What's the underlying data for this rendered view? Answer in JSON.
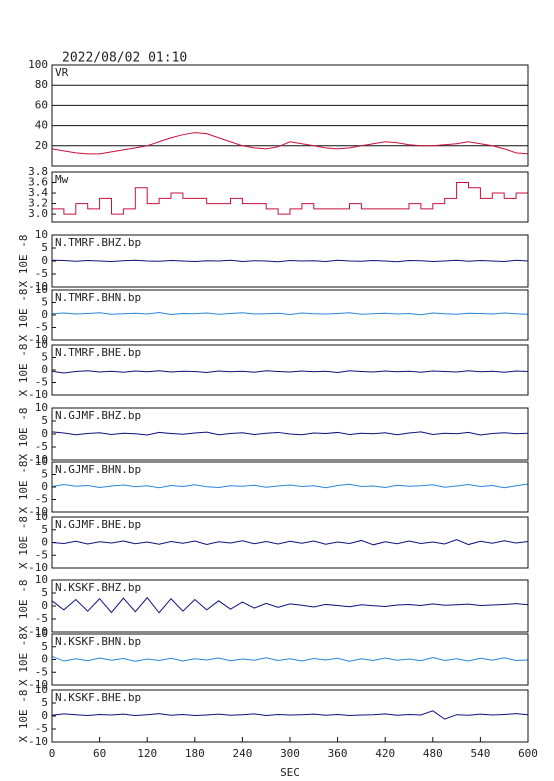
{
  "title": "2022/08/02 01:10",
  "chart_data": [
    {
      "type": "line",
      "series": [
        {
          "name": "VR",
          "color": "#c8103c",
          "values": [
            17,
            15,
            13,
            12,
            12,
            14,
            16,
            18,
            20,
            24,
            28,
            31,
            33,
            32,
            28,
            24,
            20,
            18,
            17,
            19,
            24,
            22,
            20,
            18,
            17,
            18,
            20,
            22,
            24,
            23,
            21,
            20,
            20,
            21,
            22,
            24,
            22,
            20,
            17,
            13,
            12
          ]
        }
      ],
      "x": [
        0,
        15,
        30,
        45,
        60,
        75,
        90,
        105,
        120,
        135,
        150,
        165,
        180,
        195,
        210,
        225,
        240,
        255,
        270,
        285,
        300,
        315,
        330,
        345,
        360,
        375,
        390,
        405,
        420,
        435,
        450,
        465,
        480,
        495,
        510,
        525,
        540,
        555,
        570,
        585,
        600
      ],
      "xlim": [
        0,
        600
      ],
      "ylim": [
        0,
        100
      ],
      "yticks": [
        20,
        40,
        60,
        80,
        100
      ],
      "grid": true
    },
    {
      "type": "step",
      "series": [
        {
          "name": "Mw",
          "color": "#c8103c",
          "values": [
            3.1,
            3.0,
            3.2,
            3.1,
            3.3,
            3.0,
            3.1,
            3.5,
            3.2,
            3.3,
            3.4,
            3.3,
            3.3,
            3.2,
            3.2,
            3.3,
            3.2,
            3.2,
            3.1,
            3.0,
            3.1,
            3.2,
            3.1,
            3.1,
            3.1,
            3.2,
            3.1,
            3.1,
            3.1,
            3.1,
            3.2,
            3.1,
            3.2,
            3.3,
            3.6,
            3.5,
            3.3,
            3.4,
            3.3,
            3.4,
            3.3
          ]
        }
      ],
      "x": [
        0,
        15,
        30,
        45,
        60,
        75,
        90,
        105,
        120,
        135,
        150,
        165,
        180,
        195,
        210,
        225,
        240,
        255,
        270,
        285,
        300,
        315,
        330,
        345,
        360,
        375,
        390,
        405,
        420,
        435,
        450,
        465,
        480,
        495,
        510,
        525,
        540,
        555,
        570,
        585,
        600
      ],
      "xlim": [
        0,
        600
      ],
      "ylim": [
        2.85,
        3.8
      ],
      "yticks": [
        {
          "value": 3,
          "label": "3.0"
        },
        3.2,
        3.4,
        3.6,
        3.8
      ],
      "grid": false
    },
    {
      "type": "line",
      "ylabel": "X 10E -8",
      "series": [
        {
          "name": "N.TMRF.BHZ.bp",
          "color": "#101080",
          "values": [
            0.3,
            0.2,
            -0.1,
            0.2,
            0,
            -0.2,
            0.1,
            0.3,
            0,
            -0.1,
            0.2,
            0,
            -0.2,
            0.1,
            0,
            0.3,
            -0.2,
            0.1,
            0,
            -0.3,
            0.2,
            0,
            0.1,
            -0.2,
            0.3,
            0,
            -0.1,
            0.2,
            0,
            -0.3,
            0.2,
            0.1,
            -0.2,
            0,
            0.3,
            -0.1,
            0.2,
            0,
            -0.2,
            0.3,
            0
          ]
        }
      ],
      "x": [
        0,
        15,
        30,
        45,
        60,
        75,
        90,
        105,
        120,
        135,
        150,
        165,
        180,
        195,
        210,
        225,
        240,
        255,
        270,
        285,
        300,
        315,
        330,
        345,
        360,
        375,
        390,
        405,
        420,
        435,
        450,
        465,
        480,
        495,
        510,
        525,
        540,
        555,
        570,
        585,
        600
      ],
      "xlim": [
        0,
        600
      ],
      "ylim": [
        -10,
        10
      ],
      "yticks": [
        -10,
        -5,
        0,
        5,
        10
      ],
      "grid": false
    },
    {
      "type": "line",
      "ylabel": "X 10E -8",
      "series": [
        {
          "name": "N.TMRF.BHN.bp",
          "color": "#2a86d8",
          "values": [
            0.5,
            0.8,
            0.4,
            0.6,
            0.9,
            0.3,
            0.5,
            0.7,
            0.4,
            1.0,
            0.2,
            0.6,
            0.5,
            0.8,
            0.3,
            0.6,
            0.9,
            0.4,
            0.5,
            0.7,
            0.2,
            0.8,
            0.5,
            0.4,
            0.6,
            0.9,
            0.3,
            0.5,
            0.7,
            0.4,
            0.6,
            0.1,
            0.8,
            0.5,
            0.3,
            0.7,
            0.6,
            0.4,
            0.8,
            0.5,
            0.3
          ]
        }
      ],
      "x": [
        0,
        15,
        30,
        45,
        60,
        75,
        90,
        105,
        120,
        135,
        150,
        165,
        180,
        195,
        210,
        225,
        240,
        255,
        270,
        285,
        300,
        315,
        330,
        345,
        360,
        375,
        390,
        405,
        420,
        435,
        450,
        465,
        480,
        495,
        510,
        525,
        540,
        555,
        570,
        585,
        600
      ],
      "xlim": [
        0,
        600
      ],
      "ylim": [
        -10,
        10
      ],
      "yticks": [
        -10,
        -5,
        0,
        5,
        10
      ],
      "grid": false
    },
    {
      "type": "line",
      "ylabel": "X 10E -8",
      "series": [
        {
          "name": "N.TMRF.BHE.bp",
          "color": "#101080",
          "values": [
            -0.5,
            -1.2,
            -0.6,
            -0.3,
            -0.8,
            -0.5,
            -0.9,
            -0.4,
            -0.7,
            -0.3,
            -0.8,
            -0.5,
            -0.6,
            -1.0,
            -0.4,
            -0.7,
            -0.5,
            -0.9,
            -0.3,
            -0.6,
            -0.8,
            -0.4,
            -0.7,
            -0.5,
            -1.0,
            -0.3,
            -0.6,
            -0.8,
            -0.4,
            -0.7,
            -0.5,
            -0.9,
            -0.4,
            -0.6,
            -0.8,
            -0.3,
            -0.7,
            -0.5,
            -0.9,
            -0.4,
            -0.6
          ]
        }
      ],
      "x": [
        0,
        15,
        30,
        45,
        60,
        75,
        90,
        105,
        120,
        135,
        150,
        165,
        180,
        195,
        210,
        225,
        240,
        255,
        270,
        285,
        300,
        315,
        330,
        345,
        360,
        375,
        390,
        405,
        420,
        435,
        450,
        465,
        480,
        495,
        510,
        525,
        540,
        555,
        570,
        585,
        600
      ],
      "xlim": [
        0,
        600
      ],
      "ylim": [
        -10,
        10
      ],
      "yticks": [
        -10,
        -5,
        0,
        5,
        10
      ],
      "grid": false
    },
    {
      "type": "line",
      "ylabel": "X 10E -8",
      "series": [
        {
          "name": "N.GJMF.BHZ.bp",
          "color": "#101080",
          "values": [
            0.8,
            0.4,
            -0.3,
            0.2,
            0.5,
            -0.2,
            0.3,
            0.1,
            -0.4,
            0.6,
            0.2,
            -0.1,
            0.4,
            0.7,
            -0.3,
            0.2,
            0.5,
            -0.2,
            0.3,
            0.6,
            0.0,
            -0.3,
            0.4,
            0.2,
            0.6,
            -0.2,
            0.3,
            0.1,
            0.5,
            -0.3,
            0.4,
            0.8,
            -0.2,
            0.3,
            0.1,
            0.6,
            -0.4,
            0.2,
            0.5,
            0.1,
            0.3
          ]
        }
      ],
      "x": [
        0,
        15,
        30,
        45,
        60,
        75,
        90,
        105,
        120,
        135,
        150,
        165,
        180,
        195,
        210,
        225,
        240,
        255,
        270,
        285,
        300,
        315,
        330,
        345,
        360,
        375,
        390,
        405,
        420,
        435,
        450,
        465,
        480,
        495,
        510,
        525,
        540,
        555,
        570,
        585,
        600
      ],
      "xlim": [
        0,
        600
      ],
      "ylim": [
        -10,
        10
      ],
      "yticks": [
        -10,
        -5,
        0,
        5,
        10
      ],
      "grid": false
    },
    {
      "type": "line",
      "ylabel": "X 10E -8",
      "series": [
        {
          "name": "N.GJMF.BHN.bp",
          "color": "#2a86d8",
          "values": [
            0.2,
            1.0,
            0.3,
            0.6,
            -0.2,
            0.4,
            0.8,
            0.1,
            0.5,
            -0.3,
            0.6,
            0.2,
            0.9,
            0.1,
            -0.2,
            0.5,
            0.3,
            0.7,
            -0.1,
            0.4,
            0.8,
            0.2,
            0.5,
            -0.3,
            0.6,
            1.1,
            0.2,
            0.4,
            -0.2,
            0.7,
            0.3,
            0.5,
            0.9,
            -0.1,
            0.4,
            1.0,
            0.2,
            0.6,
            -0.3,
            0.5,
            1.2
          ]
        }
      ],
      "x": [
        0,
        15,
        30,
        45,
        60,
        75,
        90,
        105,
        120,
        135,
        150,
        165,
        180,
        195,
        210,
        225,
        240,
        255,
        270,
        285,
        300,
        315,
        330,
        345,
        360,
        375,
        390,
        405,
        420,
        435,
        450,
        465,
        480,
        495,
        510,
        525,
        540,
        555,
        570,
        585,
        600
      ],
      "xlim": [
        0,
        600
      ],
      "ylim": [
        -10,
        10
      ],
      "yticks": [
        -10,
        -5,
        0,
        5,
        10
      ],
      "grid": false
    },
    {
      "type": "line",
      "ylabel": "X 10E -8",
      "series": [
        {
          "name": "N.GJMF.BHE.bp",
          "color": "#101080",
          "values": [
            0.0,
            -0.4,
            0.5,
            -0.6,
            0.3,
            -0.2,
            0.6,
            -0.5,
            0.2,
            -0.7,
            0.4,
            -0.3,
            0.6,
            -0.8,
            0.3,
            -0.2,
            0.7,
            -0.5,
            0.4,
            -0.6,
            0.5,
            -0.3,
            0.6,
            -0.7,
            0.2,
            -0.4,
            0.8,
            -0.9,
            0.3,
            -0.5,
            0.6,
            -0.4,
            0.2,
            -0.6,
            1.1,
            -0.8,
            0.5,
            -0.3,
            0.7,
            -0.2,
            0.4
          ]
        }
      ],
      "x": [
        0,
        15,
        30,
        45,
        60,
        75,
        90,
        105,
        120,
        135,
        150,
        165,
        180,
        195,
        210,
        225,
        240,
        255,
        270,
        285,
        300,
        315,
        330,
        345,
        360,
        375,
        390,
        405,
        420,
        435,
        450,
        465,
        480,
        495,
        510,
        525,
        540,
        555,
        570,
        585,
        600
      ],
      "xlim": [
        0,
        600
      ],
      "ylim": [
        -10,
        10
      ],
      "yticks": [
        -10,
        -5,
        0,
        5,
        10
      ],
      "grid": false
    },
    {
      "type": "line",
      "ylabel": "X 10E -8",
      "series": [
        {
          "name": "N.KSKF.BHZ.bp",
          "color": "#101080",
          "values": [
            2.0,
            -1.5,
            2.5,
            -2.0,
            2.8,
            -2.5,
            3.0,
            -2.2,
            3.2,
            -2.6,
            2.8,
            -2.0,
            2.5,
            -1.5,
            2.0,
            -1.2,
            1.5,
            -0.8,
            1.0,
            -0.5,
            0.8,
            0.3,
            -0.4,
            0.6,
            0.2,
            -0.3,
            0.5,
            0.1,
            -0.2,
            0.4,
            0.6,
            0.2,
            0.8,
            0.3,
            0.5,
            0.7,
            0.2,
            0.4,
            0.6,
            0.9,
            0.5
          ]
        }
      ],
      "x": [
        0,
        15,
        30,
        45,
        60,
        75,
        90,
        105,
        120,
        135,
        150,
        165,
        180,
        195,
        210,
        225,
        240,
        255,
        270,
        285,
        300,
        315,
        330,
        345,
        360,
        375,
        390,
        405,
        420,
        435,
        450,
        465,
        480,
        495,
        510,
        525,
        540,
        555,
        570,
        585,
        600
      ],
      "xlim": [
        0,
        600
      ],
      "ylim": [
        -10,
        10
      ],
      "yticks": [
        -10,
        -5,
        0,
        5,
        10
      ],
      "grid": false
    },
    {
      "type": "line",
      "ylabel": "X 10E -8",
      "series": [
        {
          "name": "N.KSKF.BHN.bp",
          "color": "#2a86d8",
          "values": [
            1.2,
            -0.6,
            0.3,
            -0.5,
            0.6,
            -0.3,
            0.4,
            -0.7,
            0.2,
            -0.4,
            0.5,
            -0.6,
            0.3,
            -0.2,
            0.6,
            -0.5,
            0.2,
            -0.3,
            0.7,
            -0.4,
            0.3,
            -0.6,
            0.4,
            -0.2,
            0.5,
            -0.7,
            0.3,
            -0.4,
            0.6,
            -0.3,
            0.2,
            -0.5,
            0.8,
            -0.4,
            0.3,
            -0.6,
            0.5,
            -0.3,
            0.7,
            -0.4,
            -0.2
          ]
        }
      ],
      "x": [
        0,
        15,
        30,
        45,
        60,
        75,
        90,
        105,
        120,
        135,
        150,
        165,
        180,
        195,
        210,
        225,
        240,
        255,
        270,
        285,
        300,
        315,
        330,
        345,
        360,
        375,
        390,
        405,
        420,
        435,
        450,
        465,
        480,
        495,
        510,
        525,
        540,
        555,
        570,
        585,
        600
      ],
      "xlim": [
        0,
        600
      ],
      "ylim": [
        -10,
        10
      ],
      "yticks": [
        -10,
        -5,
        0,
        5,
        10
      ],
      "grid": false
    },
    {
      "type": "line",
      "ylabel": "X 10E -8",
      "xlabel": "SEC",
      "series": [
        {
          "name": "N.KSKF.BHE.bp",
          "color": "#101080",
          "values": [
            0.3,
            0.8,
            0.5,
            0.2,
            0.6,
            0.4,
            0.7,
            0.2,
            0.5,
            0.9,
            0.3,
            0.6,
            0.2,
            0.4,
            0.7,
            0.3,
            0.5,
            0.8,
            0.2,
            0.6,
            0.4,
            0.5,
            0.7,
            0.3,
            0.6,
            0.2,
            0.4,
            0.5,
            0.8,
            0.3,
            0.6,
            0.4,
            2.0,
            -1.2,
            0.5,
            0.3,
            0.7,
            0.4,
            0.6,
            0.9,
            0.5
          ]
        }
      ],
      "x": [
        0,
        15,
        30,
        45,
        60,
        75,
        90,
        105,
        120,
        135,
        150,
        165,
        180,
        195,
        210,
        225,
        240,
        255,
        270,
        285,
        300,
        315,
        330,
        345,
        360,
        375,
        390,
        405,
        420,
        435,
        450,
        465,
        480,
        495,
        510,
        525,
        540,
        555,
        570,
        585,
        600
      ],
      "xlim": [
        0,
        600
      ],
      "ylim": [
        -10,
        10
      ],
      "yticks": [
        -10,
        -5,
        0,
        5,
        10
      ],
      "grid": false,
      "xticks": [
        0,
        60,
        120,
        180,
        240,
        300,
        360,
        420,
        480,
        540,
        600
      ]
    }
  ]
}
